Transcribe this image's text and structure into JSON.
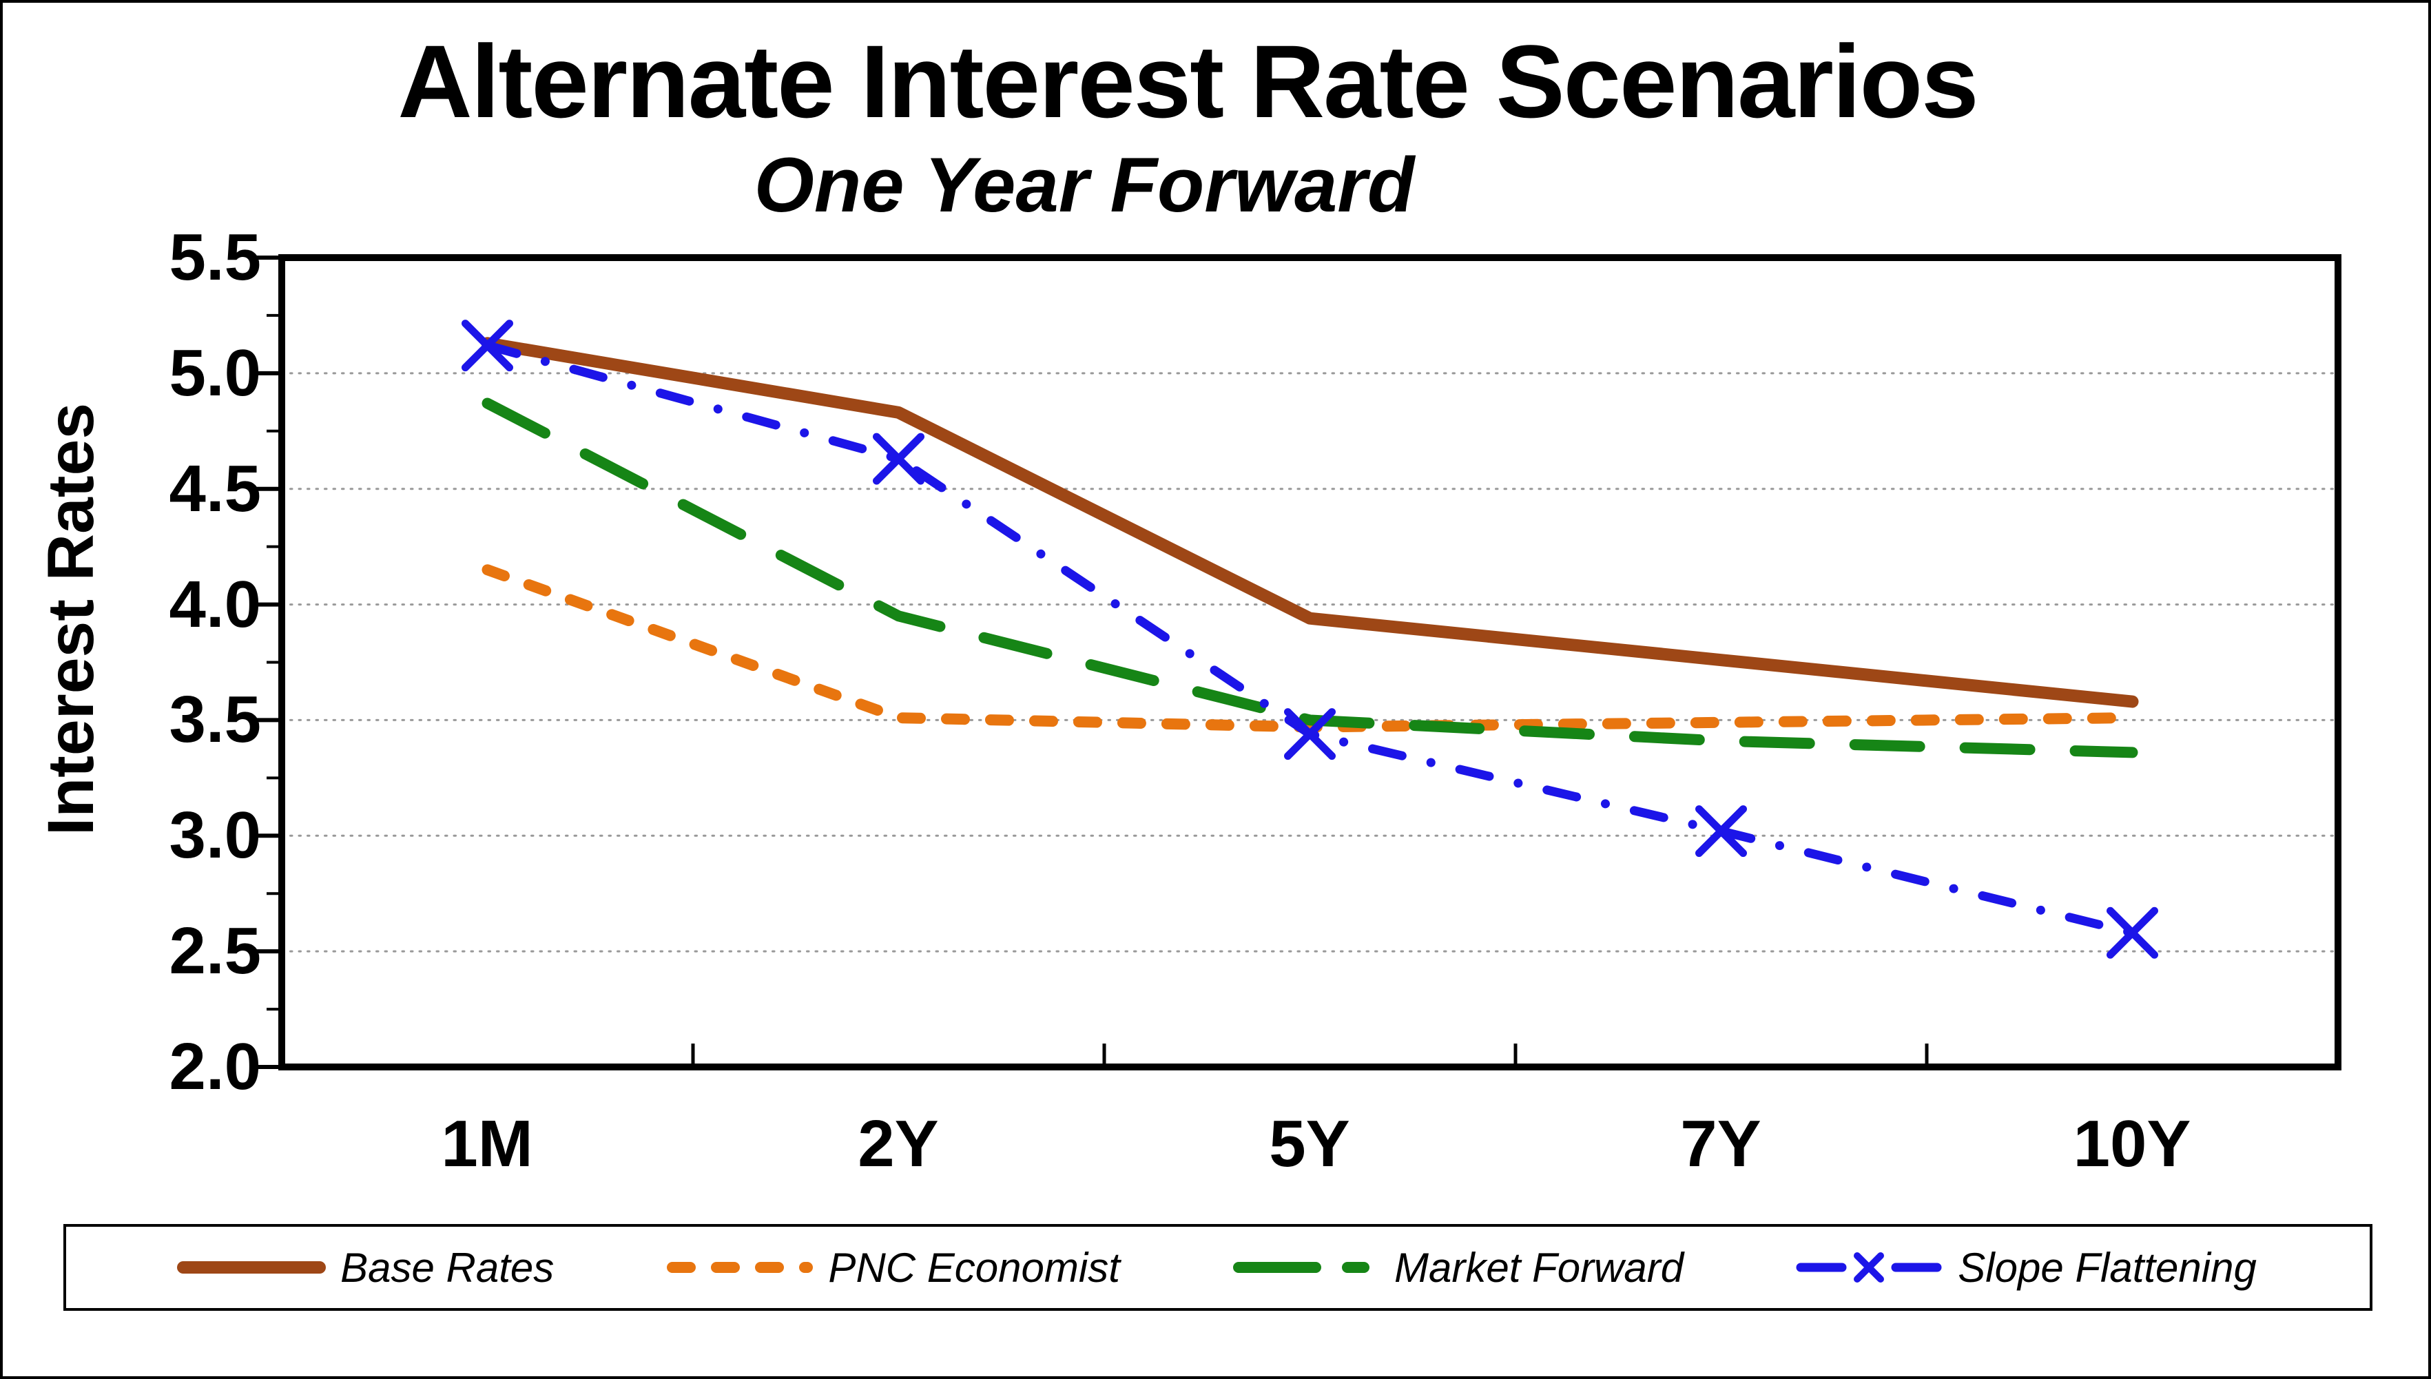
{
  "title": "Alternate Interest Rate Scenarios",
  "subtitle": "One Year Forward",
  "colors": {
    "background": "#FFFFFF",
    "axis": "#000000",
    "grid": "#999999",
    "base_rates": "#9E4716",
    "pnc_economist": "#E8750F",
    "market_forward": "#168516",
    "slope_flattening": "#1C15E8"
  },
  "y_axis": {
    "title": "Interest Rates",
    "tick_labels": [
      "5.5",
      "5.0",
      "4.5",
      "4.0",
      "3.5",
      "3.0",
      "2.5",
      "2.0"
    ]
  },
  "x_axis": {
    "tick_labels": [
      "1M",
      "2Y",
      "5Y",
      "7Y",
      "10Y"
    ]
  },
  "chart_data": {
    "type": "line",
    "title": "Alternate Interest Rate Scenarios",
    "subtitle": "One Year Forward",
    "ylabel": "Interest Rates",
    "categories": [
      "1M",
      "2Y",
      "5Y",
      "7Y",
      "10Y"
    ],
    "ylim": [
      2.0,
      5.5
    ],
    "y_step": 0.5,
    "grid": "horizontal-dotted-major",
    "legend_position": "bottom",
    "series": [
      {
        "name": "Base Rates",
        "color": "#9E4716",
        "style": "solid",
        "marker": "none",
        "values": [
          5.13,
          4.83,
          3.94,
          3.76,
          3.58
        ]
      },
      {
        "name": "PNC Economist",
        "color": "#E8750F",
        "style": "short-dash",
        "marker": "none",
        "values": [
          4.15,
          3.51,
          3.47,
          3.49,
          3.51
        ]
      },
      {
        "name": "Market Forward",
        "color": "#168516",
        "style": "long-dash",
        "marker": "none",
        "values": [
          4.87,
          3.95,
          3.5,
          3.41,
          3.36
        ]
      },
      {
        "name": "Slope Flattening",
        "color": "#1C15E8",
        "style": "dash-dot",
        "marker": "x",
        "values": [
          5.12,
          4.63,
          3.44,
          3.02,
          2.58
        ]
      }
    ]
  }
}
